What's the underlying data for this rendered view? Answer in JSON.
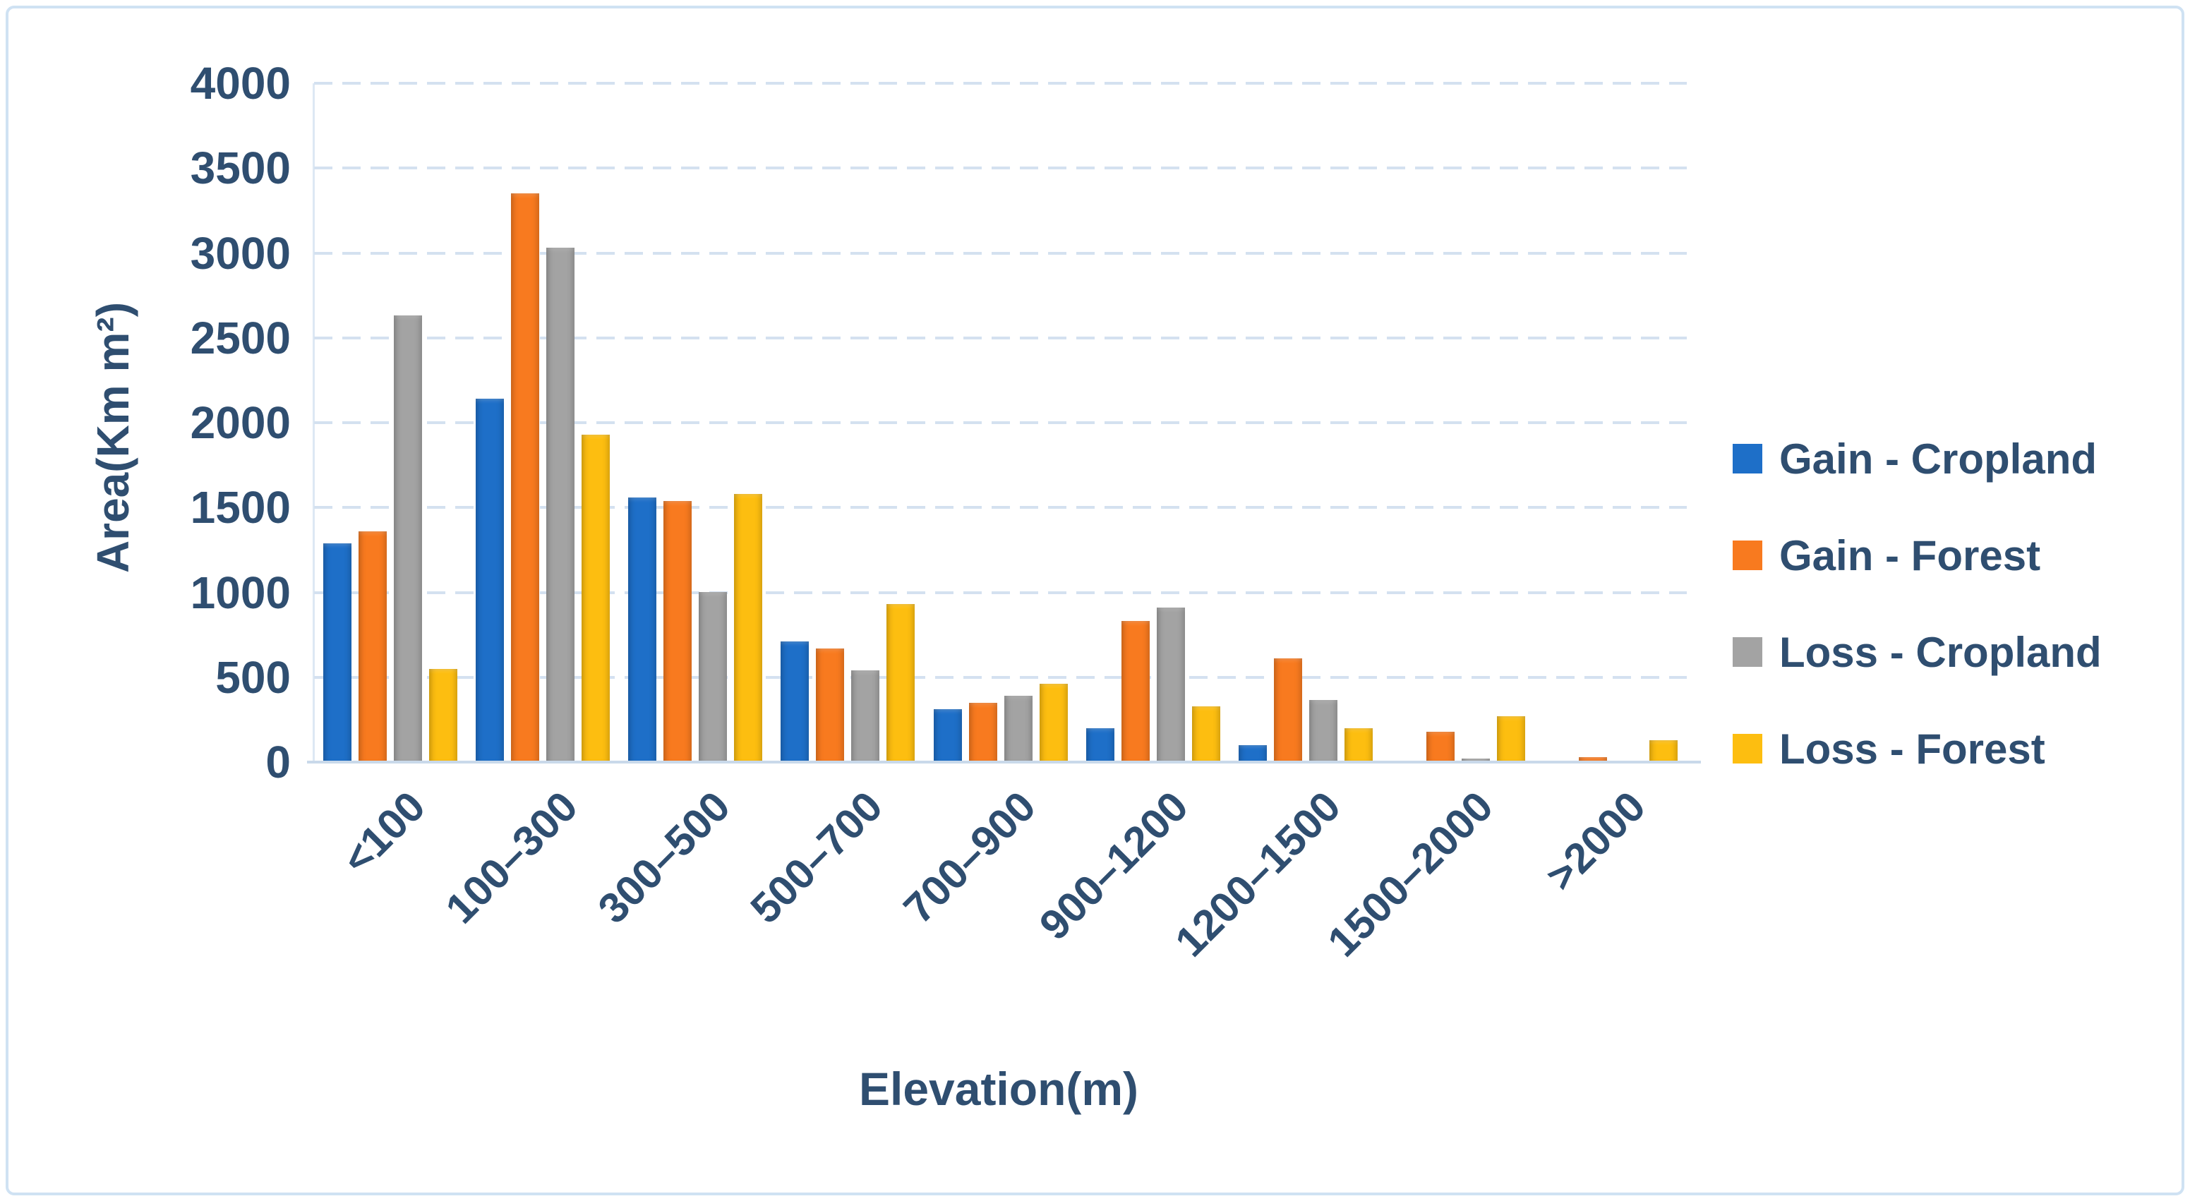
{
  "figure": {
    "border_color": "#cfe2f3",
    "background": "#ffffff",
    "text_color": "#2f4e70"
  },
  "chart_data": {
    "type": "bar",
    "title": "",
    "xlabel": "Elevation(m)",
    "ylabel": "Area(Km m²)",
    "categories": [
      "<100",
      "100–300",
      "300–500",
      "500–700",
      "700–900",
      "900–1200",
      "1200–1500",
      "1500–2000",
      ">2000"
    ],
    "series": [
      {
        "name": "Gain - Cropland",
        "color": "#1e6fc8",
        "values": [
          1290,
          2140,
          1560,
          710,
          310,
          200,
          100,
          0,
          0
        ]
      },
      {
        "name": "Gain - Forest",
        "color": "#f87a1f",
        "values": [
          1360,
          3350,
          1540,
          670,
          350,
          830,
          610,
          180,
          30
        ]
      },
      {
        "name": "Loss - Cropland",
        "color": "#a3a3a3",
        "values": [
          2630,
          3030,
          1000,
          540,
          390,
          910,
          365,
          20,
          0
        ]
      },
      {
        "name": "Loss - Forest",
        "color": "#fdbe10",
        "values": [
          550,
          1930,
          1580,
          930,
          460,
          330,
          200,
          270,
          130
        ]
      }
    ],
    "yticks": [
      0,
      500,
      1000,
      1500,
      2000,
      2500,
      3000,
      3500,
      4000
    ],
    "ylim": [
      0,
      4000
    ],
    "grid": "dashed-horizontal",
    "gridline_color": "#d4e1f0",
    "axis_line_color": "#c9d9ea",
    "legend_position": "right"
  }
}
